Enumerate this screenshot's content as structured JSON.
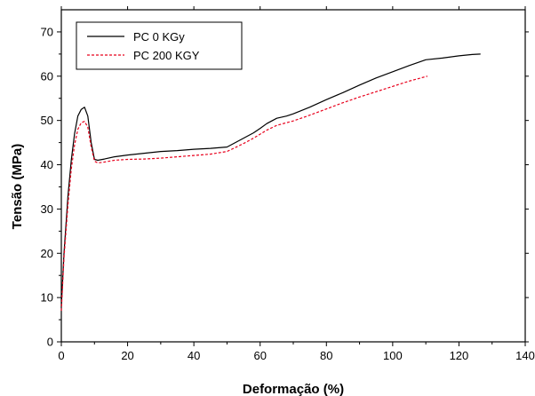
{
  "chart_data": {
    "type": "line",
    "xlabel": "Deformação (%)",
    "ylabel": "Tensão (MPa)",
    "xlim": [
      0,
      140
    ],
    "ylim": [
      0,
      75
    ],
    "xticks": [
      0,
      20,
      40,
      60,
      80,
      100,
      120,
      140
    ],
    "yticks": [
      0,
      10,
      20,
      30,
      40,
      50,
      60,
      70
    ],
    "grid": false,
    "legend_position": "top-left",
    "series": [
      {
        "name": "PC 0 KGy",
        "color": "#000000",
        "style": "solid",
        "x": [
          0,
          0.8,
          2,
          3,
          4,
          5,
          6,
          7,
          8,
          9,
          10,
          11,
          13,
          16,
          20,
          25,
          30,
          35,
          40,
          45,
          50,
          52,
          55,
          58,
          60,
          62,
          65,
          68,
          70,
          75,
          80,
          85,
          90,
          95,
          100,
          105,
          110,
          115,
          120,
          124,
          126.5
        ],
        "y": [
          8,
          20,
          33,
          41,
          47,
          51,
          52.5,
          53,
          51,
          45,
          41.2,
          41,
          41.3,
          41.8,
          42.2,
          42.6,
          43,
          43.2,
          43.5,
          43.7,
          44,
          44.8,
          46,
          47.2,
          48.2,
          49.3,
          50.5,
          51,
          51.5,
          53,
          54.7,
          56.3,
          58,
          59.6,
          61,
          62.4,
          63.7,
          64.1,
          64.6,
          64.9,
          65
        ]
      },
      {
        "name": "PC 200 KGY",
        "color": "#e8001c",
        "style": "dashed",
        "x": [
          0,
          0.8,
          2,
          3,
          4,
          5,
          6,
          7,
          8,
          9,
          10,
          11,
          13,
          16,
          20,
          25,
          30,
          35,
          40,
          45,
          50,
          52,
          55,
          58,
          60,
          62,
          65,
          68,
          70,
          75,
          80,
          85,
          90,
          95,
          100,
          105,
          110.5
        ],
        "y": [
          7,
          19,
          31,
          39,
          44.5,
          48,
          49.5,
          49.8,
          48.5,
          44,
          40.8,
          40.4,
          40.6,
          41,
          41.2,
          41.3,
          41.5,
          41.8,
          42.1,
          42.4,
          43,
          43.7,
          44.8,
          46,
          46.9,
          47.8,
          48.9,
          49.5,
          49.9,
          51.2,
          52.6,
          54,
          55.3,
          56.5,
          57.7,
          58.9,
          60
        ]
      }
    ]
  }
}
